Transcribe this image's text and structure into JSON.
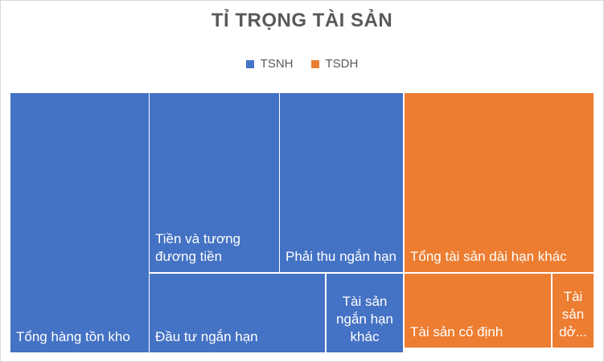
{
  "chart_data": {
    "type": "treemap",
    "title": "TỈ TRỌNG TÀI SẢN",
    "legend": [
      {
        "name": "TSNH",
        "color": "#4472C4"
      },
      {
        "name": "TSDH",
        "color": "#ED7D31"
      }
    ],
    "legend_position": "top",
    "groups": [
      {
        "name": "TSNH",
        "color": "#4472C4",
        "items": [
          {
            "label": "Tổng hàng tồn kho"
          },
          {
            "label": "Tiền và tương đương tiền"
          },
          {
            "label": "Phải thu ngắn hạn"
          },
          {
            "label": "Đầu tư ngắn hạn"
          },
          {
            "label": "Tài sản ngắn hạn khác"
          }
        ]
      },
      {
        "name": "TSDH",
        "color": "#ED7D31",
        "items": [
          {
            "label": "Tổng tài sản dài hạn khác"
          },
          {
            "label": "Tài sản cố định"
          },
          {
            "label": "Tài sản dở..."
          }
        ]
      }
    ]
  }
}
